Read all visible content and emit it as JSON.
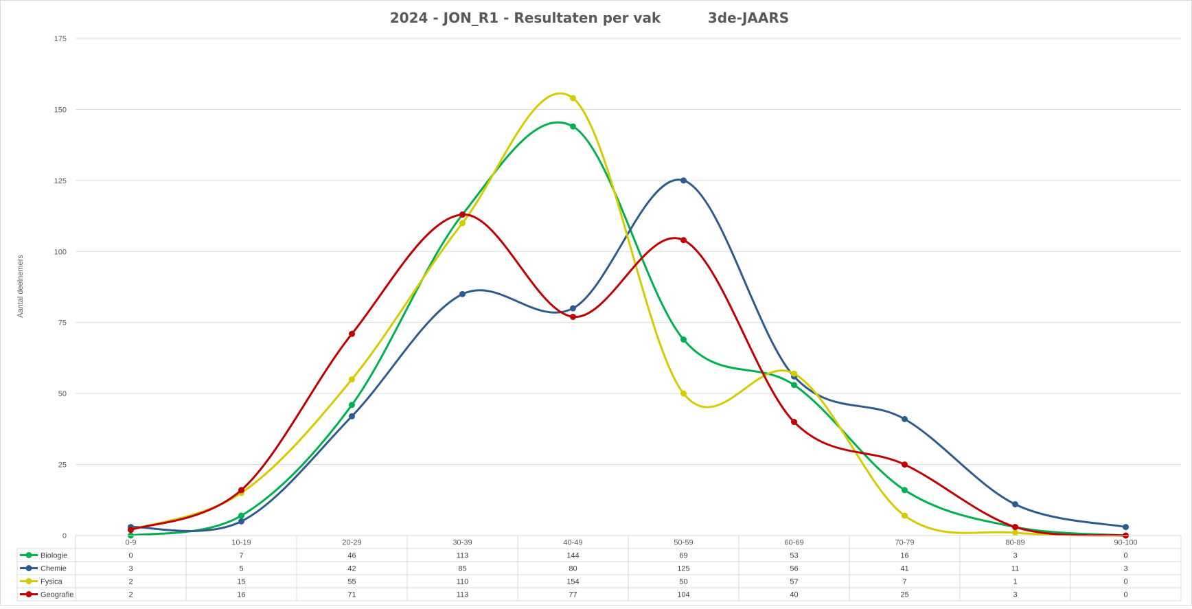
{
  "chart_data": {
    "type": "line",
    "smooth": true,
    "title": "2024 - JON_R1 - Resultaten per vak",
    "subtitle": "3de-JAARS",
    "xlabel": "",
    "ylabel": "Aantal deelnemers",
    "ylim": [
      0,
      175
    ],
    "yticks": [
      0,
      25,
      50,
      75,
      100,
      125,
      150,
      175
    ],
    "grid": true,
    "legend": "data-table",
    "categories": [
      "0-9",
      "10-19",
      "20-29",
      "30-39",
      "40-49",
      "50-59",
      "60-69",
      "70-79",
      "80-89",
      "90-100"
    ],
    "series": [
      {
        "name": "Biologie",
        "color": "#00B050",
        "values": [
          0,
          7,
          46,
          113,
          144,
          69,
          53,
          16,
          3,
          0
        ]
      },
      {
        "name": "Chemie",
        "color": "#2E5B8C",
        "values": [
          3,
          5,
          42,
          85,
          80,
          125,
          56,
          41,
          11,
          3
        ]
      },
      {
        "name": "Fysica",
        "color": "#D4CC00",
        "values": [
          2,
          15,
          55,
          110,
          154,
          50,
          57,
          7,
          1,
          0
        ]
      },
      {
        "name": "Geografie",
        "color": "#C00000",
        "values": [
          2,
          16,
          71,
          113,
          77,
          104,
          40,
          25,
          3,
          0
        ]
      }
    ]
  }
}
